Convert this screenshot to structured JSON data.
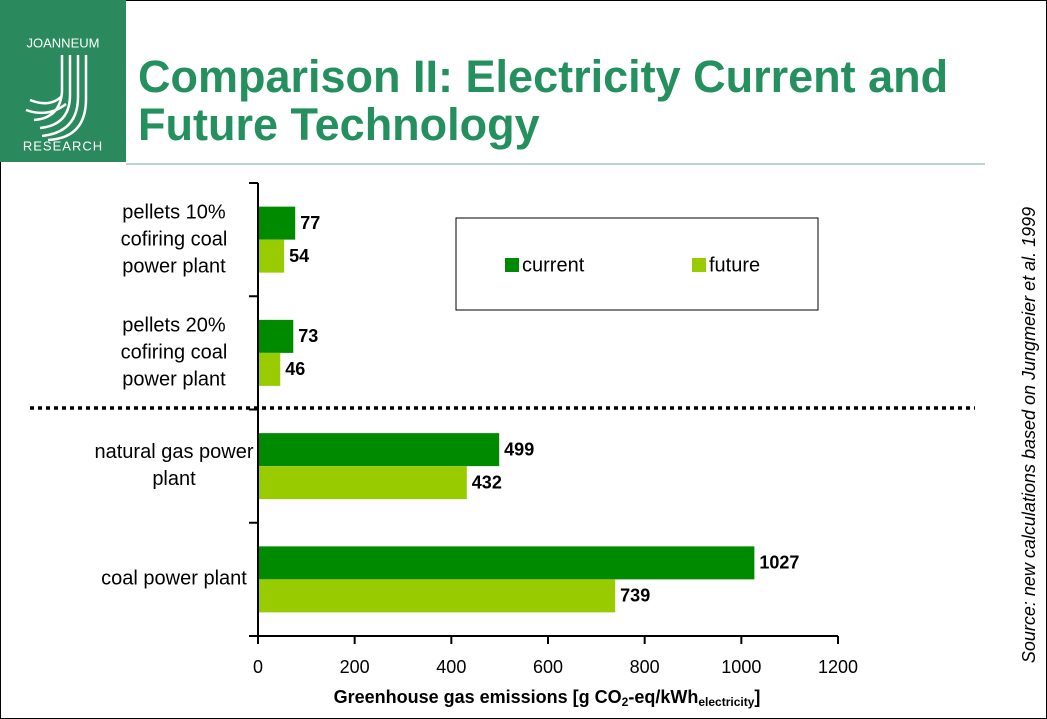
{
  "logo": {
    "top": "JOANNEUM",
    "bottom": "RESEARCH"
  },
  "chart_data": {
    "type": "barh",
    "title": [
      "Comparison II: Electricity Current and",
      "Future Technology"
    ],
    "categories": [
      [
        "pellets 10%",
        "cofiring coal",
        "power plant"
      ],
      [
        "pellets 20%",
        "cofiring coal",
        "power plant"
      ],
      [
        "natural gas power",
        "plant"
      ],
      [
        "coal power plant"
      ]
    ],
    "series": [
      {
        "name": "current",
        "color": "#008a00",
        "values": [
          77,
          73,
          499,
          1027
        ]
      },
      {
        "name": "future",
        "color": "#99cc00",
        "values": [
          54,
          46,
          432,
          739
        ]
      }
    ],
    "xlim": [
      0,
      1200
    ],
    "xticks": [
      0,
      200,
      400,
      600,
      800,
      1000,
      1200
    ],
    "xlabel": [
      "Greenhouse gas emissions [g CO",
      "2",
      "-eq/kWh",
      "electricity",
      "]"
    ],
    "source": "Source: new calculations based on Jungmeier et al. 1999"
  }
}
